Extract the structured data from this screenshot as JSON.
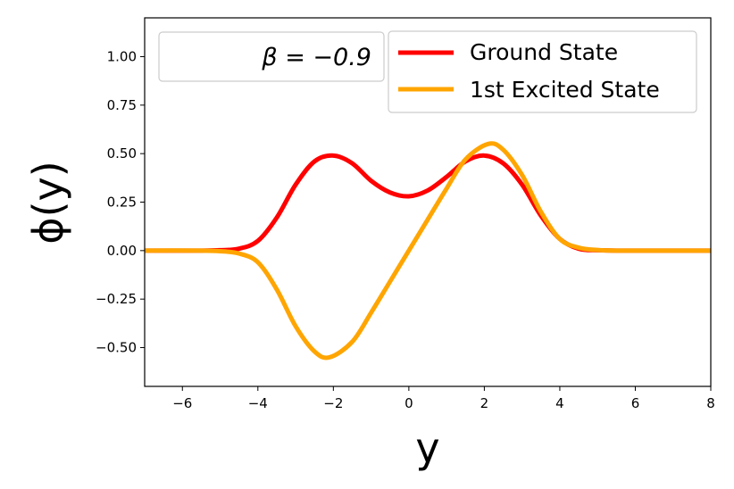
{
  "chart_data": {
    "type": "line",
    "title": "",
    "xlabel": "y",
    "ylabel": "ϕ(y)",
    "xlim": [
      -7,
      8
    ],
    "ylim": [
      -0.7,
      1.2
    ],
    "xticks": [
      -6,
      -4,
      -2,
      0,
      2,
      4,
      6,
      8
    ],
    "xtick_labels": [
      "−6",
      "−4",
      "−2",
      "0",
      "2",
      "4",
      "6",
      "8"
    ],
    "yticks": [
      -0.5,
      -0.25,
      0,
      0.25,
      0.5,
      0.75,
      1.0
    ],
    "ytick_labels": [
      "−0.50",
      "−0.25",
      "0.00",
      "0.25",
      "0.50",
      "0.75",
      "1.00"
    ],
    "grid": false,
    "legend_position": "top-right",
    "annotation": "β = −0.9",
    "series": [
      {
        "name": "Ground State",
        "color": "#ff0000",
        "x": [
          -7,
          -5.5,
          -5,
          -4.5,
          -4,
          -3.5,
          -3,
          -2.5,
          -2,
          -1.5,
          -1,
          -0.5,
          0,
          0.5,
          1,
          1.5,
          2,
          2.5,
          3,
          3.5,
          4,
          4.5,
          5,
          5.5,
          7,
          8
        ],
        "y": [
          0.0,
          0.0,
          0.002,
          0.01,
          0.05,
          0.17,
          0.34,
          0.46,
          0.49,
          0.45,
          0.36,
          0.3,
          0.28,
          0.31,
          0.38,
          0.46,
          0.49,
          0.45,
          0.34,
          0.18,
          0.06,
          0.01,
          0.002,
          0.0,
          0.0,
          0.0
        ]
      },
      {
        "name": "1st Excited State",
        "color": "#ffa500",
        "x": [
          -7,
          -5.5,
          -5,
          -4.5,
          -4,
          -3.5,
          -3,
          -2.5,
          -2.1,
          -1.5,
          -1,
          -0.5,
          0,
          0.5,
          1,
          1.5,
          2.1,
          2.5,
          3,
          3.5,
          4,
          4.5,
          5,
          5.5,
          7,
          8
        ],
        "y": [
          0.0,
          0.0,
          -0.003,
          -0.015,
          -0.06,
          -0.2,
          -0.39,
          -0.52,
          -0.55,
          -0.47,
          -0.32,
          -0.16,
          0.0,
          0.16,
          0.32,
          0.47,
          0.55,
          0.52,
          0.39,
          0.2,
          0.06,
          0.015,
          0.003,
          0.0,
          0.0,
          0.0
        ]
      }
    ]
  }
}
